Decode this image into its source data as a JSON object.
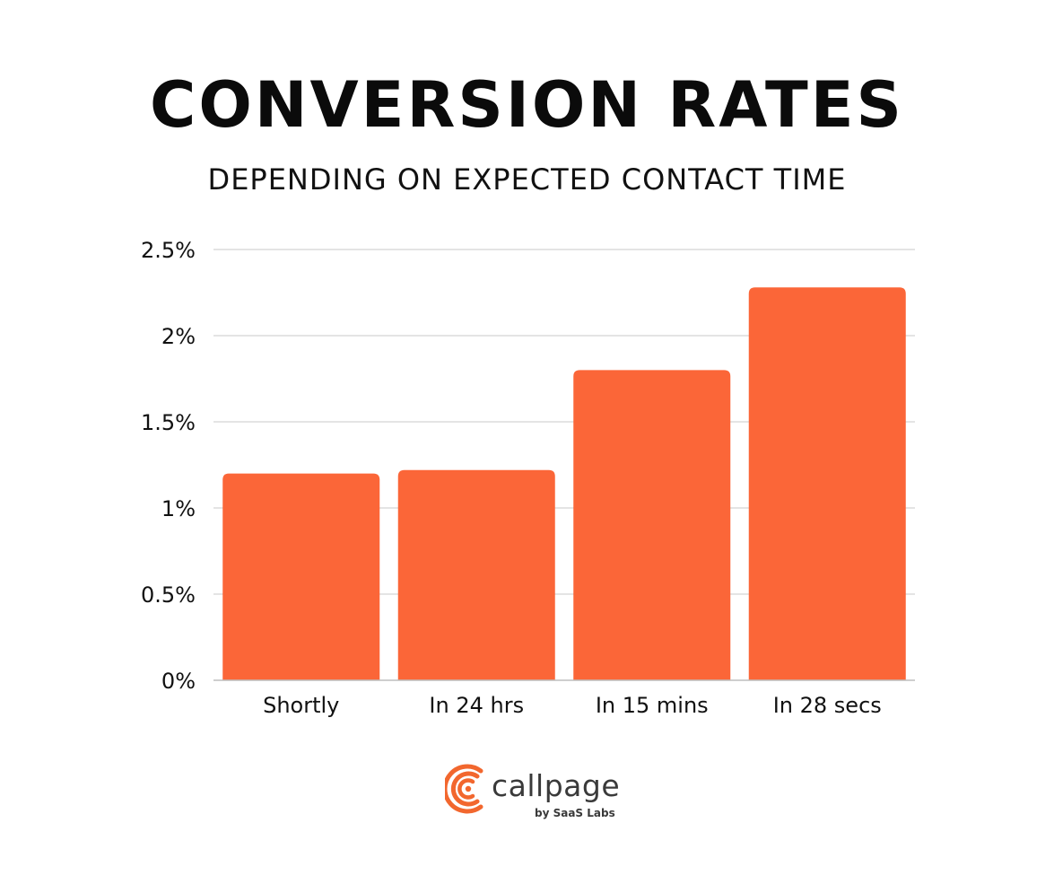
{
  "colors": {
    "bar": "#fb6638",
    "grid": "#d3d3d3",
    "axis": "#bdbdbd",
    "text": "#111111",
    "logo_accent": "#f2672e",
    "logo_text": "#3a3a3a"
  },
  "chart_data": {
    "type": "bar",
    "title": "CONVERSION RATES",
    "subtitle": "DEPENDING ON EXPECTED CONTACT TIME",
    "categories": [
      "Shortly",
      "In 24 hrs",
      "In 15 mins",
      "In 28 secs"
    ],
    "values": [
      1.2,
      1.22,
      1.8,
      2.28
    ],
    "ylim": [
      0,
      2.5
    ],
    "yticks": [
      {
        "value": 0,
        "label": "0%"
      },
      {
        "value": 0.5,
        "label": "0.5%"
      },
      {
        "value": 1,
        "label": "1%"
      },
      {
        "value": 1.5,
        "label": "1.5%"
      },
      {
        "value": 2,
        "label": "2%"
      },
      {
        "value": 2.5,
        "label": "2.5%"
      }
    ],
    "grid": true,
    "legend": "none",
    "xlabel": "",
    "ylabel": ""
  },
  "logo": {
    "name": "callpage",
    "tagline": "by SaaS Labs",
    "icon": "phone-target-icon"
  }
}
